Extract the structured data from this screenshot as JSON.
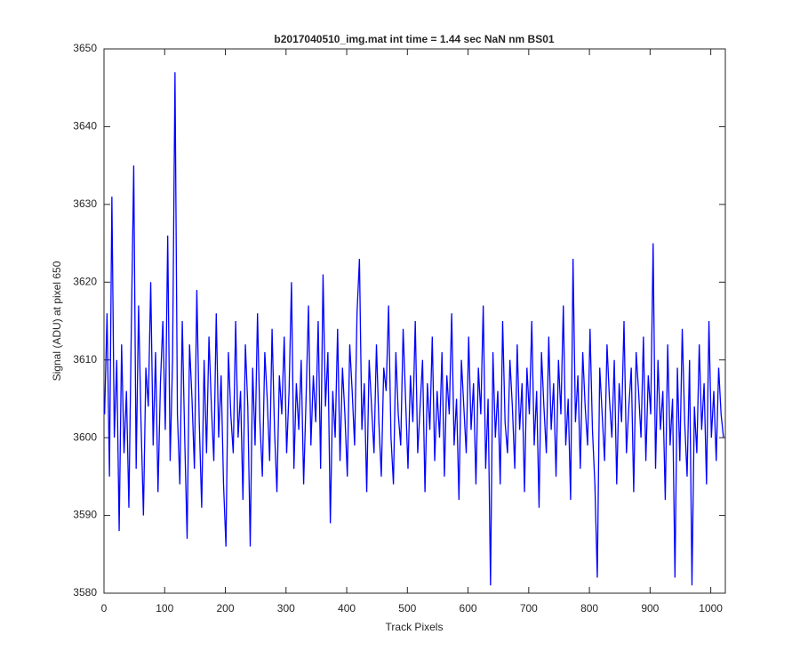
{
  "chart_data": {
    "type": "line",
    "title": "b2017040510_img.mat int time = 1.44 sec  NaN nm BS01",
    "xlabel": "Track Pixels",
    "ylabel": "Signal (ADU) at pixel 650",
    "xlim": [
      0,
      1024
    ],
    "xticks": [
      0,
      100,
      200,
      300,
      400,
      500,
      600,
      700,
      800,
      900,
      1000
    ],
    "ylim": [
      3580,
      3650
    ],
    "yticks": [
      3580,
      3590,
      3600,
      3610,
      3620,
      3630,
      3640,
      3650
    ],
    "x": [
      1,
      5,
      9,
      13,
      17,
      21,
      25,
      29,
      33,
      37,
      41,
      45,
      49,
      53,
      57,
      61,
      65,
      69,
      73,
      77,
      81,
      85,
      89,
      93,
      97,
      101,
      105,
      109,
      113,
      117,
      121,
      125,
      129,
      133,
      137,
      141,
      145,
      149,
      153,
      157,
      161,
      165,
      169,
      173,
      177,
      181,
      185,
      189,
      193,
      197,
      201,
      205,
      209,
      213,
      217,
      221,
      225,
      229,
      233,
      237,
      241,
      245,
      249,
      253,
      257,
      261,
      265,
      269,
      273,
      277,
      281,
      285,
      289,
      293,
      297,
      301,
      305,
      309,
      313,
      317,
      321,
      325,
      329,
      333,
      337,
      341,
      345,
      349,
      353,
      357,
      361,
      365,
      369,
      373,
      377,
      381,
      385,
      389,
      393,
      397,
      401,
      405,
      409,
      413,
      417,
      421,
      425,
      429,
      433,
      437,
      441,
      445,
      449,
      453,
      457,
      461,
      465,
      469,
      473,
      477,
      481,
      485,
      489,
      493,
      497,
      501,
      505,
      509,
      513,
      517,
      521,
      525,
      529,
      533,
      537,
      541,
      545,
      549,
      553,
      557,
      561,
      565,
      569,
      573,
      577,
      581,
      585,
      589,
      593,
      597,
      601,
      605,
      609,
      613,
      617,
      621,
      625,
      629,
      633,
      637,
      641,
      645,
      649,
      653,
      657,
      661,
      665,
      669,
      673,
      677,
      681,
      685,
      689,
      693,
      697,
      701,
      705,
      709,
      713,
      717,
      721,
      725,
      729,
      733,
      737,
      741,
      745,
      749,
      753,
      757,
      761,
      765,
      769,
      773,
      777,
      781,
      785,
      789,
      793,
      797,
      801,
      805,
      809,
      813,
      817,
      821,
      825,
      829,
      833,
      837,
      841,
      845,
      849,
      853,
      857,
      861,
      865,
      869,
      873,
      877,
      881,
      885,
      889,
      893,
      897,
      901,
      905,
      909,
      913,
      917,
      921,
      925,
      929,
      933,
      937,
      941,
      945,
      949,
      953,
      957,
      961,
      965,
      969,
      973,
      977,
      981,
      985,
      989,
      993,
      997,
      1001,
      1005,
      1009,
      1013,
      1017,
      1021
    ],
    "series": [
      {
        "color": "#0000ff",
        "values": [
          3603,
          3616,
          3595,
          3631,
          3600,
          3610,
          3588,
          3612,
          3598,
          3606,
          3591,
          3614,
          3635,
          3596,
          3617,
          3602,
          3590,
          3609,
          3604,
          3620,
          3599,
          3611,
          3593,
          3607,
          3615,
          3601,
          3626,
          3597,
          3610,
          3647,
          3603,
          3594,
          3615,
          3600,
          3587,
          3612,
          3605,
          3596,
          3619,
          3602,
          3591,
          3610,
          3598,
          3613,
          3604,
          3597,
          3616,
          3600,
          3608,
          3594,
          3586,
          3611,
          3603,
          3598,
          3615,
          3600,
          3606,
          3592,
          3612,
          3604,
          3586,
          3609,
          3599,
          3616,
          3602,
          3595,
          3611,
          3605,
          3597,
          3614,
          3601,
          3593,
          3608,
          3603,
          3613,
          3598,
          3606,
          3620,
          3596,
          3607,
          3601,
          3610,
          3594,
          3605,
          3617,
          3599,
          3608,
          3602,
          3615,
          3596,
          3621,
          3604,
          3611,
          3589,
          3606,
          3600,
          3614,
          3597,
          3609,
          3603,
          3595,
          3612,
          3606,
          3599,
          3616,
          3623,
          3601,
          3607,
          3593,
          3610,
          3604,
          3598,
          3612,
          3602,
          3595,
          3609,
          3606,
          3617,
          3600,
          3594,
          3611,
          3603,
          3599,
          3614,
          3605,
          3596,
          3608,
          3602,
          3615,
          3598,
          3604,
          3610,
          3593,
          3607,
          3601,
          3613,
          3597,
          3606,
          3600,
          3611,
          3595,
          3608,
          3603,
          3616,
          3599,
          3605,
          3592,
          3610,
          3604,
          3598,
          3613,
          3601,
          3607,
          3594,
          3609,
          3603,
          3617,
          3596,
          3605,
          3581,
          3611,
          3600,
          3606,
          3594,
          3615,
          3602,
          3598,
          3610,
          3604,
          3596,
          3612,
          3601,
          3607,
          3593,
          3609,
          3603,
          3615,
          3599,
          3606,
          3591,
          3611,
          3604,
          3598,
          3613,
          3601,
          3607,
          3595,
          3610,
          3603,
          3617,
          3599,
          3605,
          3592,
          3623,
          3602,
          3608,
          3596,
          3611,
          3604,
          3599,
          3614,
          3601,
          3594,
          3582,
          3609,
          3603,
          3597,
          3612,
          3605,
          3600,
          3610,
          3594,
          3607,
          3602,
          3615,
          3598,
          3604,
          3609,
          3593,
          3611,
          3606,
          3600,
          3613,
          3597,
          3608,
          3603,
          3625,
          3596,
          3610,
          3601,
          3606,
          3592,
          3612,
          3599,
          3605,
          3582,
          3609,
          3597,
          3614,
          3602,
          3595,
          3610,
          3581,
          3604,
          3598,
          3612,
          3601,
          3607,
          3594,
          3615,
          3600,
          3606,
          3597,
          3609,
          3603,
          3600
        ]
      }
    ],
    "grid": false
  }
}
